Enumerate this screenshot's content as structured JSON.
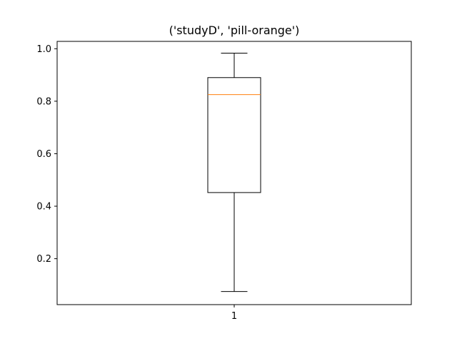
{
  "chart_data": {
    "type": "box",
    "title": "('studyD', 'pill-orange')",
    "xlabel": "",
    "ylabel": "",
    "categories": [
      "1"
    ],
    "boxes": [
      {
        "name": "1",
        "whisker_low": 0.075,
        "q1": 0.452,
        "median": 0.825,
        "q3": 0.89,
        "whisker_high": 0.983
      }
    ],
    "ylim": [
      0.025,
      1.028
    ],
    "yticks": [
      0.2,
      0.4,
      0.6,
      0.8,
      1.0
    ],
    "ytick_labels": [
      "0.2",
      "0.4",
      "0.6",
      "0.8",
      "1.0"
    ],
    "grid": false,
    "colors": {
      "box": "#000000",
      "median": "#ff7f0e",
      "axes": "#000000",
      "background": "#ffffff"
    }
  }
}
